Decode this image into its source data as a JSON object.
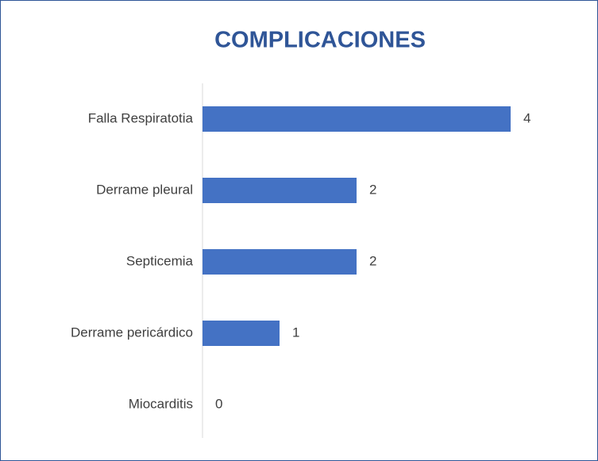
{
  "chart_data": {
    "type": "bar",
    "orientation": "horizontal",
    "title": "COMPLICACIONES",
    "categories": [
      "Falla Respiratotia",
      "Derrame pleural",
      "Septicemia",
      "Derrame pericárdico",
      "Miocarditis"
    ],
    "values": [
      4,
      2,
      2,
      1,
      0
    ],
    "color": "#4472c4",
    "xlim": [
      0,
      4
    ]
  }
}
